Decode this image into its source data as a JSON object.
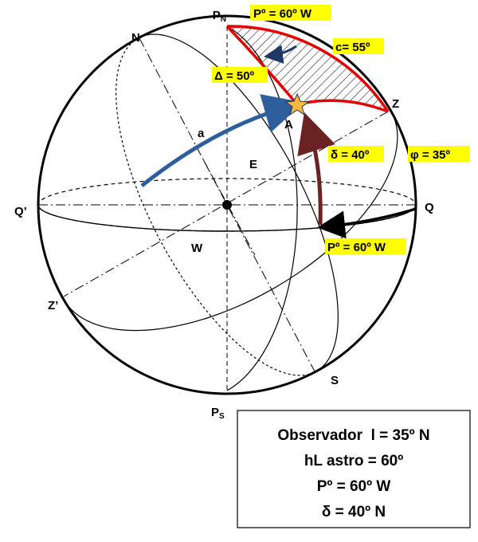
{
  "labels": {
    "pn": {
      "text": "P",
      "sub": "N"
    },
    "ps": {
      "text": "P",
      "sub": "S"
    },
    "top_angle": "Pº = 60º W",
    "n": "N",
    "c": "c= 55º",
    "delta_cap": "Δ = 50º",
    "z": "Z",
    "a_arc": "a",
    "a_star": "A",
    "e": "E",
    "decl": "δ = 40º",
    "phi": "φ = 35º",
    "q_prime": "Q’",
    "q": "Q",
    "w": "W",
    "eq_angle": "Pº = 60º W",
    "z_prime": "Z’",
    "s": "S"
  },
  "info_box": {
    "lines": [
      "Observador  l = 35º N",
      "hL astro = 60º",
      "Pº = 60º W",
      "δ = 40º N"
    ]
  }
}
